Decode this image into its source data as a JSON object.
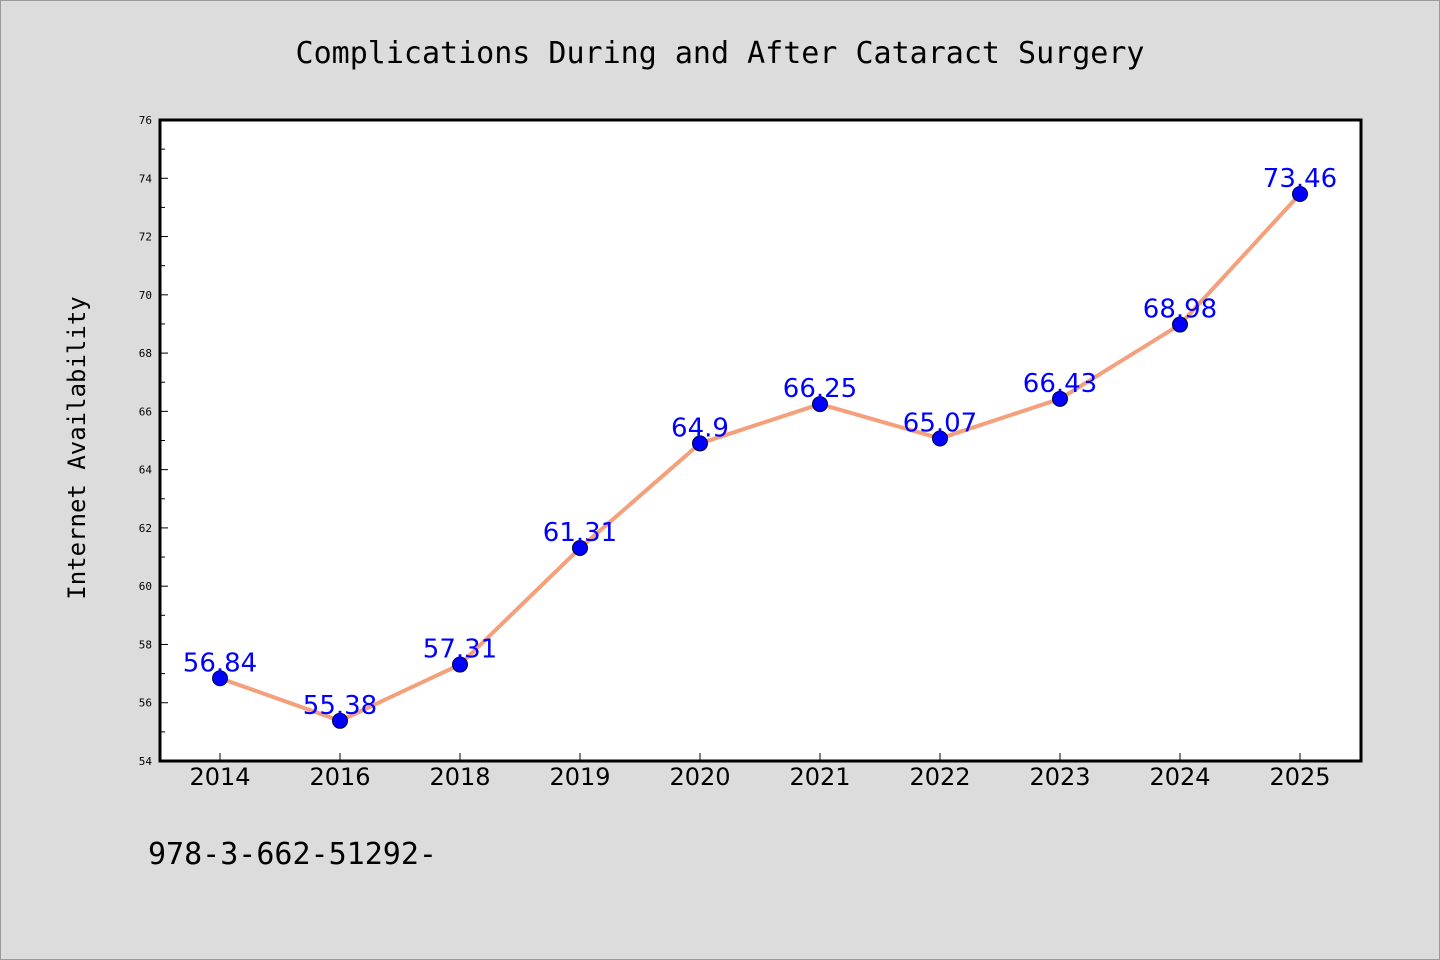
{
  "chart_data": {
    "type": "line",
    "title": "Complications During and After Cataract Surgery",
    "xlabel": "",
    "ylabel": "Internet Availability",
    "categories": [
      "2014",
      "2016",
      "2018",
      "2019",
      "2020",
      "2021",
      "2022",
      "2023",
      "2024",
      "2025"
    ],
    "series": [
      {
        "values": [
          56.84,
          55.38,
          57.31,
          61.31,
          64.9,
          66.25,
          65.07,
          66.43,
          68.98,
          73.46
        ],
        "labels": [
          "56.84",
          "55.38",
          "57.31",
          "61.31",
          "64.9",
          "66.25",
          "65.07",
          "66.43",
          "68.98",
          "73.46"
        ]
      }
    ],
    "ylim": [
      54,
      76
    ],
    "yticks": [
      "54",
      "56",
      "58",
      "60",
      "62",
      "64",
      "66",
      "68",
      "70",
      "72",
      "74",
      "76"
    ],
    "grid": false,
    "legend": "none",
    "colors": {
      "line": "#f4a07c",
      "marker": "#0000ff",
      "label": "#0000ff",
      "background": "#dcdcdc",
      "plot_background": "#ffffff"
    }
  },
  "footer": {
    "text": "978-3-662-51292-"
  }
}
